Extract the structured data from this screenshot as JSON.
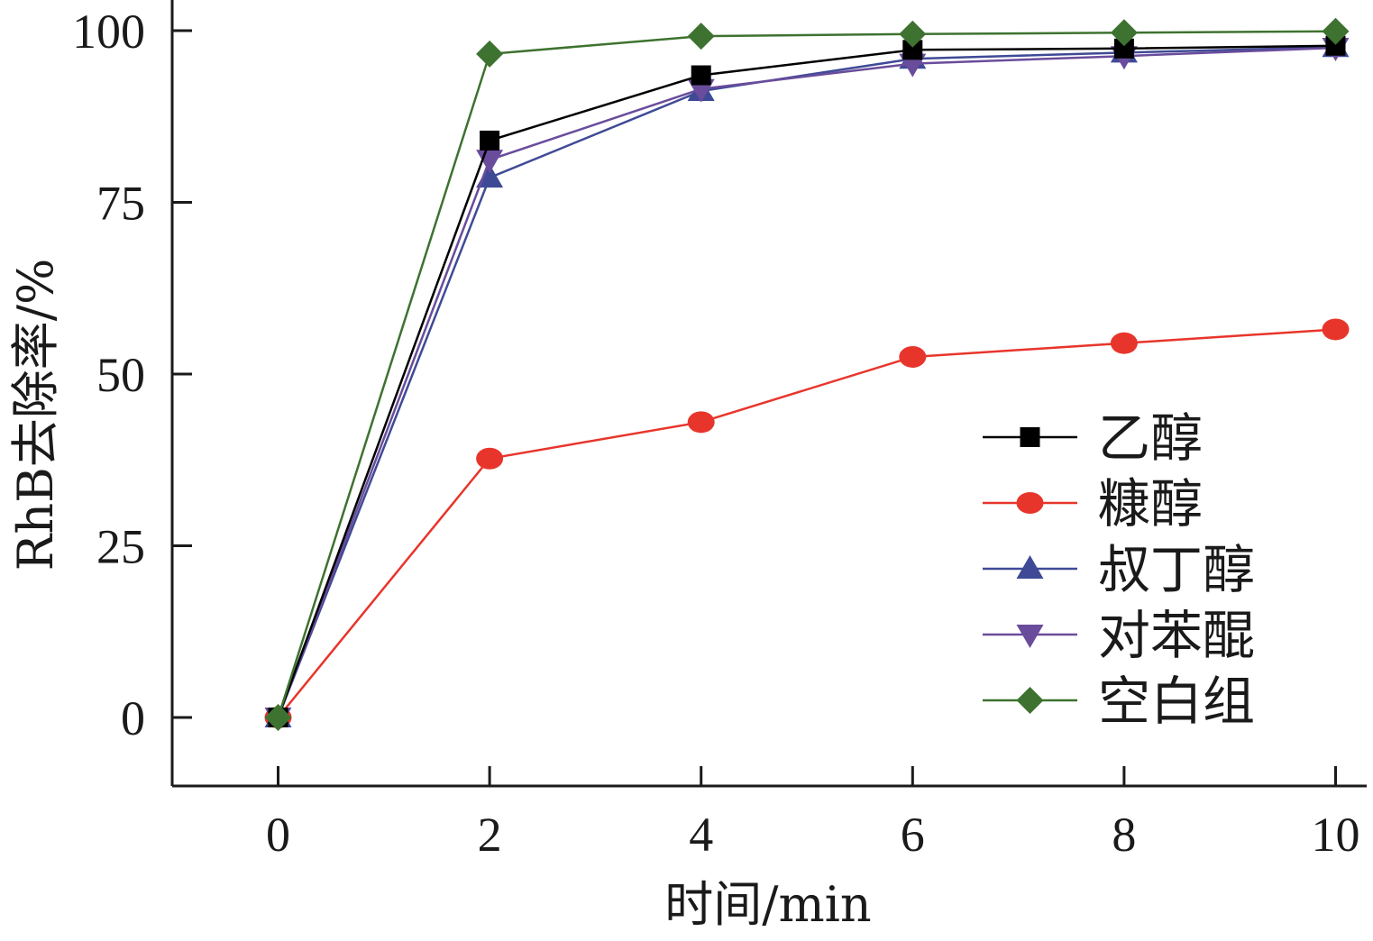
{
  "chart_data": {
    "type": "line",
    "xlabel": "时间/min",
    "ylabel": "RhB去除率/%",
    "x": [
      0,
      2,
      4,
      6,
      8,
      10
    ],
    "xlim": [
      -1,
      10
    ],
    "ylim": [
      -10,
      100
    ],
    "xticks": [
      0,
      2,
      4,
      6,
      8,
      10
    ],
    "yticks": [
      0,
      25,
      50,
      75,
      100
    ],
    "grid": false,
    "legend_position": "right",
    "series": [
      {
        "name": "乙醇",
        "marker": "square",
        "color": "#000000",
        "values": [
          0,
          84.0,
          93.5,
          97.2,
          97.4,
          97.8
        ]
      },
      {
        "name": "糠醇",
        "marker": "circle",
        "color": "#e8352b",
        "values": [
          0,
          37.7,
          43.0,
          52.5,
          54.5,
          56.5
        ]
      },
      {
        "name": "叔丁醇",
        "marker": "triangle-up",
        "color": "#3f4a96",
        "values": [
          0,
          78.6,
          91.2,
          95.9,
          96.8,
          97.6
        ]
      },
      {
        "name": "对苯醌",
        "marker": "triangle-down",
        "color": "#6a4c9c",
        "values": [
          0,
          81.2,
          91.5,
          95.2,
          96.3,
          97.5
        ]
      },
      {
        "name": "空白组",
        "marker": "diamond",
        "color": "#3e7230",
        "values": [
          0,
          96.6,
          99.2,
          99.5,
          99.7,
          99.9
        ]
      }
    ]
  }
}
